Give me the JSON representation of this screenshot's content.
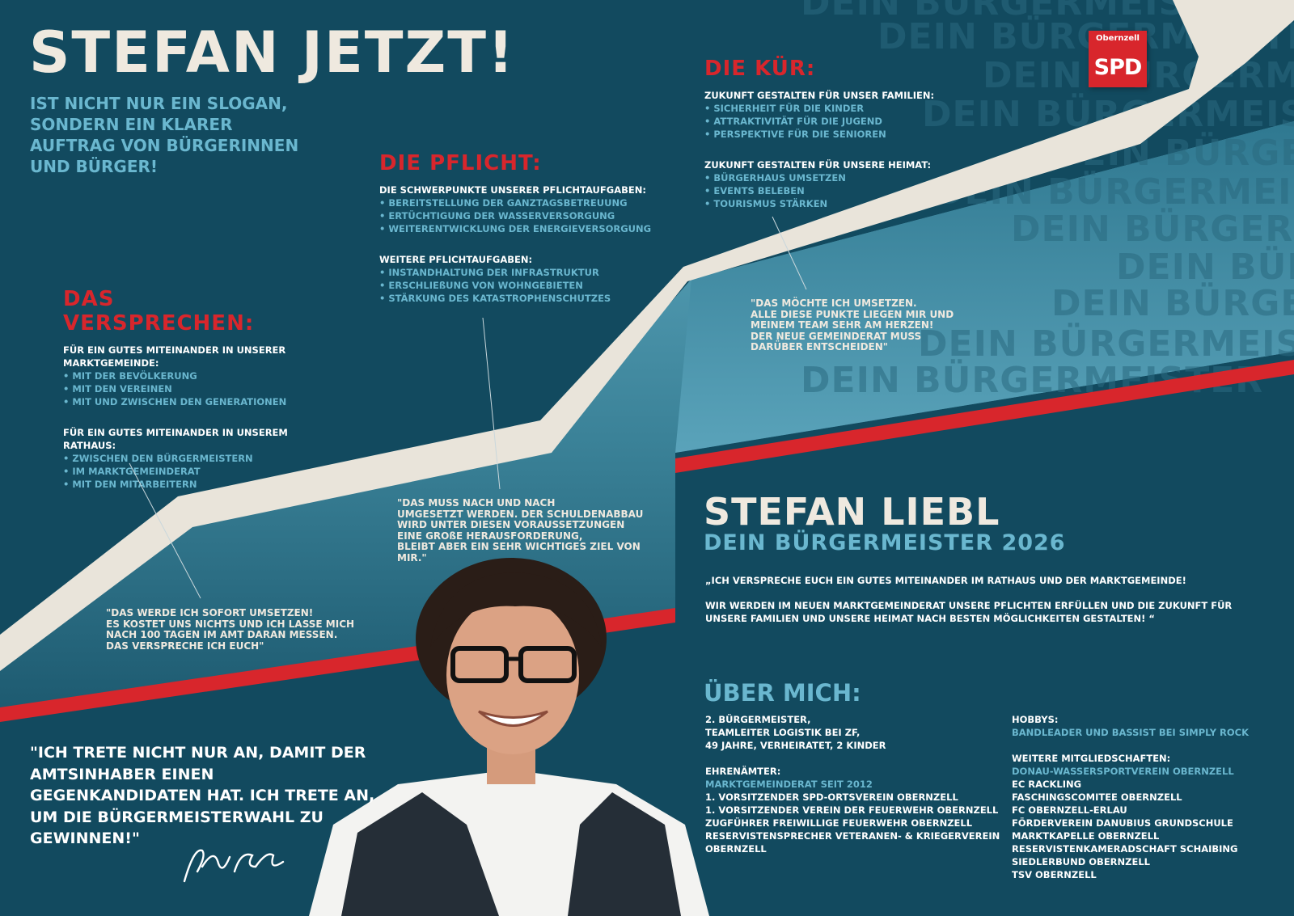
{
  "headline": "STEFAN JETZT!",
  "sub_slogan": "IST NICHT NUR EIN SLOGAN, SONDERN EIN KLARER AUFTRAG VON BÜRGERINNEN UND BÜRGER!",
  "watermark_text": "DEIN BÜRGERMEISTER",
  "logo": {
    "place": "Obernzell",
    "party": "SPD"
  },
  "colors": {
    "background": "#124a5f",
    "accent_red": "#d8262c",
    "cream": "#efe9df",
    "light_blue": "#6ab7cf"
  },
  "versprechen": {
    "title": "DAS VERSPRECHEN:",
    "group1_heading": "FÜR EIN GUTES MITEINANDER IN UNSERER MARKTGEMEINDE:",
    "group1_items": [
      "MIT DER BEVÖLKERUNG",
      "MIT DEN VEREINEN",
      "MIT UND ZWISCHEN DEN GENERATIONEN"
    ],
    "group2_heading": "FÜR EIN GUTES MITEINANDER IN UNSEREM RATHAUS:",
    "group2_items": [
      "ZWISCHEN DEN BÜRGERMEISTERN",
      "IM MARKTGEMEINDERAT",
      "MIT DEN MITARBEITERN"
    ],
    "quote_lines": [
      "\"DAS WERDE ICH SOFORT UMSETZEN!",
      "ES KOSTET UNS NICHTS UND ICH LASSE MICH",
      "NACH 100 TAGEN IM AMT DARAN MESSEN.",
      "DAS VERSPRECHE ICH EUCH\""
    ]
  },
  "pflicht": {
    "title": "DIE PFLICHT:",
    "group1_heading": "DIE SCHWERPUNKTE UNSERER PFLICHTAUFGABEN:",
    "group1_items": [
      "BEREITSTELLUNG DER GANZTAGSBETREUUNG",
      "ERTÜCHTIGUNG DER WASSERVERSORGUNG",
      "WEITERENTWICKLUNG DER ENERGIEVERSORGUNG"
    ],
    "group2_heading": "WEITERE PFLICHTAUFGABEN:",
    "group2_items": [
      "INSTANDHALTUNG DER INFRASTRUKTUR",
      "ERSCHLIEßUNG VON WOHNGEBIETEN",
      "STÄRKUNG DES KATASTROPHENSCHUTZES"
    ],
    "quote_lines": [
      "\"DAS MUSS NACH UND NACH",
      "UMGESETZT WERDEN. DER SCHULDENABBAU",
      "WIRD UNTER DIESEN VORAUSSETZUNGEN",
      "EINE GROßE HERAUSFORDERUNG,",
      "BLEIBT ABER EIN SEHR WICHTIGES ZIEL VON MIR.\""
    ]
  },
  "kuer": {
    "title": "DIE KÜR:",
    "group1_heading": "ZUKUNFT GESTALTEN FÜR UNSER FAMILIEN:",
    "group1_items": [
      "SICHERHEIT FÜR DIE KINDER",
      "ATTRAKTIVITÄT FÜR DIE JUGEND",
      "PERSPEKTIVE FÜR DIE SENIOREN"
    ],
    "group2_heading": "ZUKUNFT GESTALTEN FÜR UNSERE HEIMAT:",
    "group2_items": [
      "BÜRGERHAUS UMSETZEN",
      "EVENTS BELEBEN",
      "TOURISMUS STÄRKEN"
    ],
    "quote_lines": [
      "\"DAS MÖCHTE ICH UMSETZEN.",
      "ALLE DIESE PUNKTE LIEGEN MIR UND",
      "MEINEM TEAM SEHR AM HERZEN!",
      "DER NEUE GEMEINDERAT MUSS",
      "DARÜBER ENTSCHEIDEN\""
    ]
  },
  "candidate": {
    "name": "STEFAN LIEBL",
    "tagline": "DEIN BÜRGERMEISTER 2026",
    "statement_1": "„ICH VERSPRECHE EUCH EIN GUTES MITEINANDER IM RATHAUS UND DER MARKTGEMEINDE!",
    "statement_2": "WIR WERDEN IM NEUEN MARKTGEMEINDERAT UNSERE PFLICHTEN ERFÜLLEN UND DIE ZUKUNFT FÜR UNSERE FAMILIEN UND UNSERE HEIMAT NACH BESTEN MÖGLICHKEITEN GESTALTEN! “"
  },
  "about": {
    "title": "ÜBER MICH:",
    "profile_lines": [
      "2. BÜRGERMEISTER,",
      "TEAMLEITER LOGISTIK BEI ZF,",
      "49 JAHRE, VERHEIRATET, 2 KINDER"
    ],
    "honorary_heading": "EHRENÄMTER:",
    "honorary_first": "MARKTGEMEINDERAT SEIT 2012",
    "honorary_rest": [
      "1. VORSITZENDER SPD-ORTSVEREIN OBERNZELL",
      "1. VORSITZENDER VEREIN DER FEUERWEHR OBERNZELL",
      "ZUGFÜHRER FREIWILLIGE FEUERWEHR OBERNZELL",
      "RESERVISTENSPRECHER VETERANEN- & KRIEGERVEREIN",
      "OBERNZELL"
    ],
    "hobbies_heading": "HOBBYS:",
    "hobbies": "BANDLEADER UND BASSIST BEI SIMPLY ROCK",
    "memberships_heading": "WEITERE MITGLIEDSCHAFTEN:",
    "memberships_first": "DONAU-WASSERSPORTVEREIN OBERNZELL",
    "memberships_rest": [
      "EC RACKLING",
      "FASCHINGSCOMITEE OBERNZELL",
      "FC OBERNZELL-ERLAU",
      "FÖRDERVEREIN DANUBIUS GRUNDSCHULE",
      "MARKTKAPELLE OBERNZELL",
      "RESERVISTENKAMERADSCHAFT SCHAIBING",
      "SIEDLERBUND OBERNZELL",
      "TSV OBERNZELL"
    ]
  },
  "bottom_quote": "\"ICH TRETE NICHT NUR AN, DAMIT DER AMTSINHABER EINEN GEGENKANDIDATEN HAT. ICH TRETE AN, UM DIE BÜRGERMEISTERWAHL ZU GEWINNEN!\"",
  "signature": "Stefan Liebl"
}
